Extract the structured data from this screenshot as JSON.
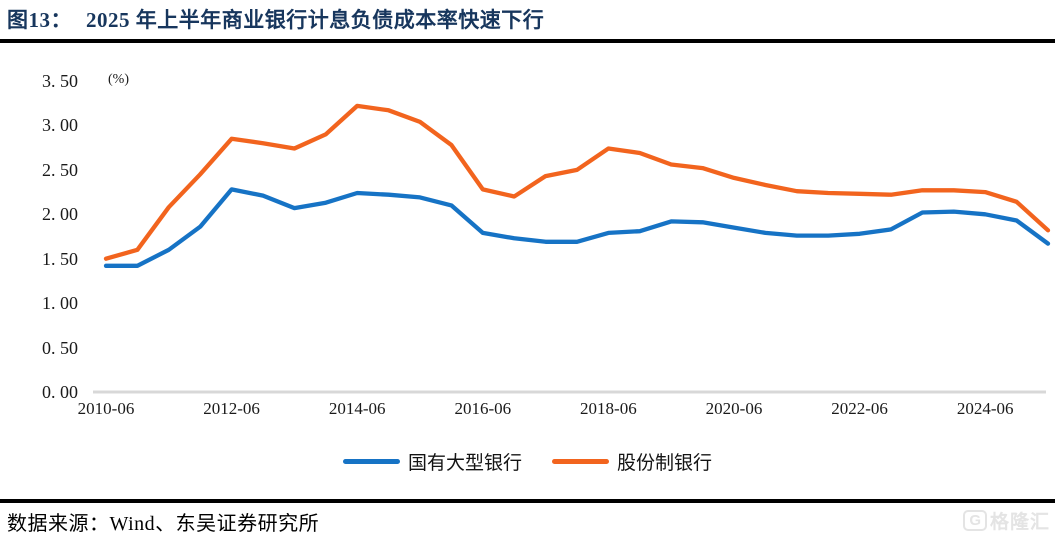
{
  "header": {
    "figure_label": "图13：",
    "title": "2025 年上半年商业银行计息负债成本率快速下行"
  },
  "chart_data": {
    "type": "line",
    "title": "2025 年上半年商业银行计息负债成本率快速下行",
    "unit_label": "(%)",
    "categories": [
      "2010-06",
      "2010-12",
      "2011-06",
      "2011-12",
      "2012-06",
      "2012-12",
      "2013-06",
      "2013-12",
      "2014-06",
      "2014-12",
      "2015-06",
      "2015-12",
      "2016-06",
      "2016-12",
      "2017-06",
      "2017-12",
      "2018-06",
      "2018-12",
      "2019-06",
      "2019-12",
      "2020-06",
      "2020-12",
      "2021-06",
      "2021-12",
      "2022-06",
      "2022-12",
      "2023-06",
      "2023-12",
      "2024-06",
      "2024-12",
      "2025-06"
    ],
    "series": [
      {
        "name": "国有大型银行",
        "color": "#1673C5",
        "values": [
          1.42,
          1.42,
          1.6,
          1.86,
          2.28,
          2.21,
          2.07,
          2.13,
          2.24,
          2.22,
          2.19,
          2.1,
          1.79,
          1.73,
          1.69,
          1.69,
          1.79,
          1.81,
          1.92,
          1.91,
          1.85,
          1.79,
          1.76,
          1.76,
          1.78,
          1.83,
          2.02,
          2.03,
          2.0,
          1.93,
          1.67
        ]
      },
      {
        "name": "股份制银行",
        "color": "#F2641E",
        "values": [
          1.5,
          1.6,
          2.08,
          2.45,
          2.85,
          2.8,
          2.74,
          2.9,
          3.22,
          3.17,
          3.04,
          2.78,
          2.28,
          2.2,
          2.43,
          2.5,
          2.74,
          2.69,
          2.56,
          2.52,
          2.41,
          2.33,
          2.26,
          2.24,
          2.23,
          2.22,
          2.27,
          2.27,
          2.25,
          2.14,
          1.82
        ]
      }
    ],
    "y_axis": {
      "min": 0,
      "max": 3.5,
      "step": 0.5,
      "tick_labels": [
        "0. 00",
        "0. 50",
        "1. 00",
        "1. 50",
        "2. 00",
        "2. 50",
        "3. 00",
        "3. 50"
      ]
    },
    "x_axis": {
      "tick_every": 4,
      "tick_labels": [
        "2010-06",
        "2012-06",
        "2014-06",
        "2016-06",
        "2018-06",
        "2020-06",
        "2022-06",
        "2024-06"
      ]
    },
    "grid": false,
    "legend_position": "bottom-center",
    "axis_line_color": "#D8D8D8"
  },
  "footer": {
    "source": "数据来源：Wind、东吴证券研究所"
  },
  "watermark": {
    "logo_letter": "G",
    "text": "格隆汇"
  }
}
